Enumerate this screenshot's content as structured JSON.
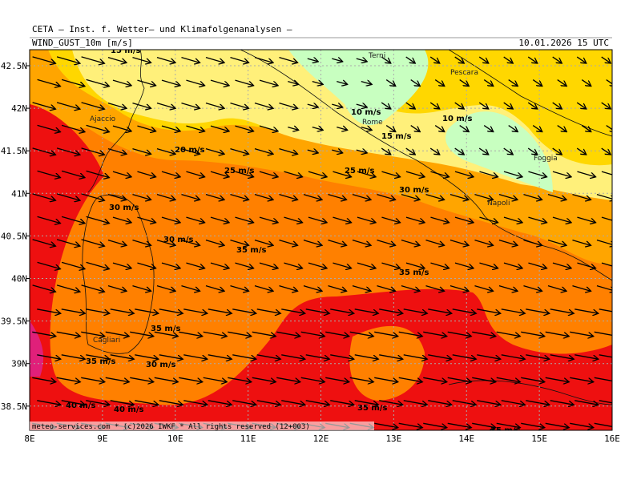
{
  "header": {
    "title": "CETA — Inst. f. Wetter— und Klimafolgenanalysen —",
    "variable": "WIND_GUST_10m [m/s]",
    "valid_time": "10.01.2026 15 UTC"
  },
  "footer": "meteo-services.com * (c)2026 IWKF * All rights reserved (12+003)",
  "axes": {
    "lon_labels": [
      "8E",
      "9E",
      "10E",
      "11E",
      "12E",
      "13E",
      "14E",
      "15E",
      "16E"
    ],
    "lat_labels": [
      "42.5N",
      "42N",
      "41.5N",
      "41N",
      "40.5N",
      "40N",
      "39.5N",
      "39N",
      "38.5N"
    ]
  },
  "places": [
    "Terni",
    "Pescara",
    "Ajaccio",
    "Rome",
    "Foggia",
    "Napoli",
    "Cagliari"
  ],
  "contour_labels": [
    "15 m/s",
    "10 m/s",
    "10 m/s",
    "15 m/s",
    "20 m/s",
    "25 m/s",
    "25 m/s",
    "30 m/s",
    "30 m/s",
    "30 m/s",
    "35 m/s",
    "35 m/s",
    "35 m/s",
    "35 m/s",
    "30 m/s",
    "40 m/s",
    "40 m/s",
    "35 m/s",
    "35 m/s"
  ]
}
